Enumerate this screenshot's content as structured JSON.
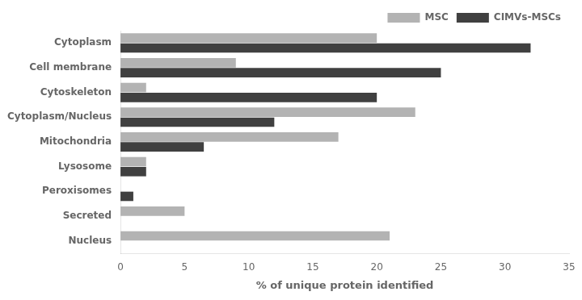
{
  "chart_data": {
    "type": "bar",
    "orientation": "horizontal",
    "categories": [
      "Nucleus",
      "Secreted",
      "Peroxisomes",
      "Lysosome",
      "Mitochondria",
      "Cytoplasm/Nucleus",
      "Cytoskeleton",
      "Cell membrane",
      "Cytoplasm"
    ],
    "series": [
      {
        "name": "MSC",
        "color": "#b3b3b3",
        "values": [
          21,
          5,
          0,
          2,
          17,
          23,
          2,
          9,
          20
        ]
      },
      {
        "name": "CIMVs-MSCs",
        "color": "#404040",
        "values": [
          0,
          0,
          1,
          2,
          6.5,
          12,
          20,
          25,
          32
        ]
      }
    ],
    "xlabel": "% of unique protein identified",
    "xlim": [
      0,
      35
    ],
    "xticks": [
      0,
      5,
      10,
      15,
      20,
      25,
      30,
      35
    ],
    "grid": false,
    "legend": "upper right"
  }
}
